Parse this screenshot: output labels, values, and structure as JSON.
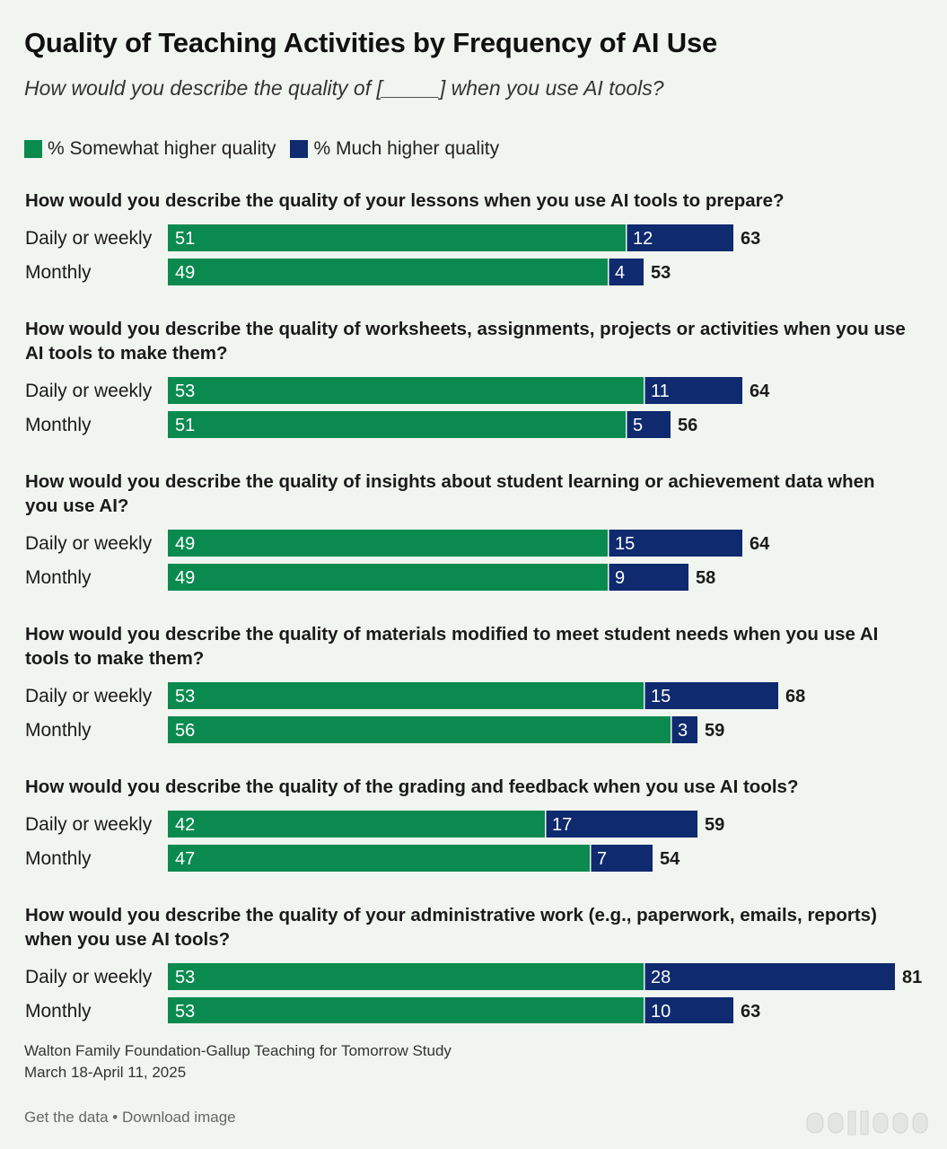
{
  "header": {
    "title": "Quality of Teaching Activities by Frequency of AI Use",
    "subtitle": "How would you describe the quality of [_____] when you use AI tools?"
  },
  "legend": {
    "items": [
      {
        "label": "% Somewhat higher quality",
        "color": "#0a8a4f"
      },
      {
        "label": "% Much higher quality",
        "color": "#0f2a6e"
      }
    ]
  },
  "chart_data": {
    "type": "bar",
    "orientation": "horizontal",
    "stacked": true,
    "series_names": [
      "% Somewhat higher quality",
      "% Much higher quality"
    ],
    "colors": [
      "#0a8a4f",
      "#0f2a6e"
    ],
    "groups": [
      {
        "question": "How would you describe the quality of your lessons when you use AI tools to prepare?",
        "rows": [
          {
            "label": "Daily or weekly",
            "somewhat": 51,
            "much": 12,
            "total": 63
          },
          {
            "label": "Monthly",
            "somewhat": 49,
            "much": 4,
            "total": 53
          }
        ]
      },
      {
        "question": "How would you describe the quality of worksheets, assignments, projects or activities when you use AI tools to make them?",
        "rows": [
          {
            "label": "Daily or weekly",
            "somewhat": 53,
            "much": 11,
            "total": 64
          },
          {
            "label": "Monthly",
            "somewhat": 51,
            "much": 5,
            "total": 56
          }
        ]
      },
      {
        "question": "How would you describe the quality of insights about student learning or achievement data when you use AI?",
        "rows": [
          {
            "label": "Daily or weekly",
            "somewhat": 49,
            "much": 15,
            "total": 64
          },
          {
            "label": "Monthly",
            "somewhat": 49,
            "much": 9,
            "total": 58
          }
        ]
      },
      {
        "question": "How would you describe the quality of materials modified to meet student needs when you use AI tools to make them?",
        "rows": [
          {
            "label": "Daily or weekly",
            "somewhat": 53,
            "much": 15,
            "total": 68
          },
          {
            "label": "Monthly",
            "somewhat": 56,
            "much": 3,
            "total": 59
          }
        ]
      },
      {
        "question": "How would you describe the quality of the grading and feedback when you use AI tools?",
        "rows": [
          {
            "label": "Daily or weekly",
            "somewhat": 42,
            "much": 17,
            "total": 59
          },
          {
            "label": "Monthly",
            "somewhat": 47,
            "much": 7,
            "total": 54
          }
        ]
      },
      {
        "question": "How would you describe the quality of your administrative work (e.g., paperwork, emails, reports) when you use AI tools?",
        "rows": [
          {
            "label": "Daily or weekly",
            "somewhat": 53,
            "much": 28,
            "total": 81
          },
          {
            "label": "Monthly",
            "somewhat": 53,
            "much": 10,
            "total": 63
          }
        ]
      }
    ]
  },
  "footer": {
    "source": "Walton Family Foundation-Gallup Teaching for Tomorrow Study",
    "dates": "March 18-April 11, 2025",
    "get_data": "Get the data",
    "separator": " • ",
    "download": "Download image"
  }
}
